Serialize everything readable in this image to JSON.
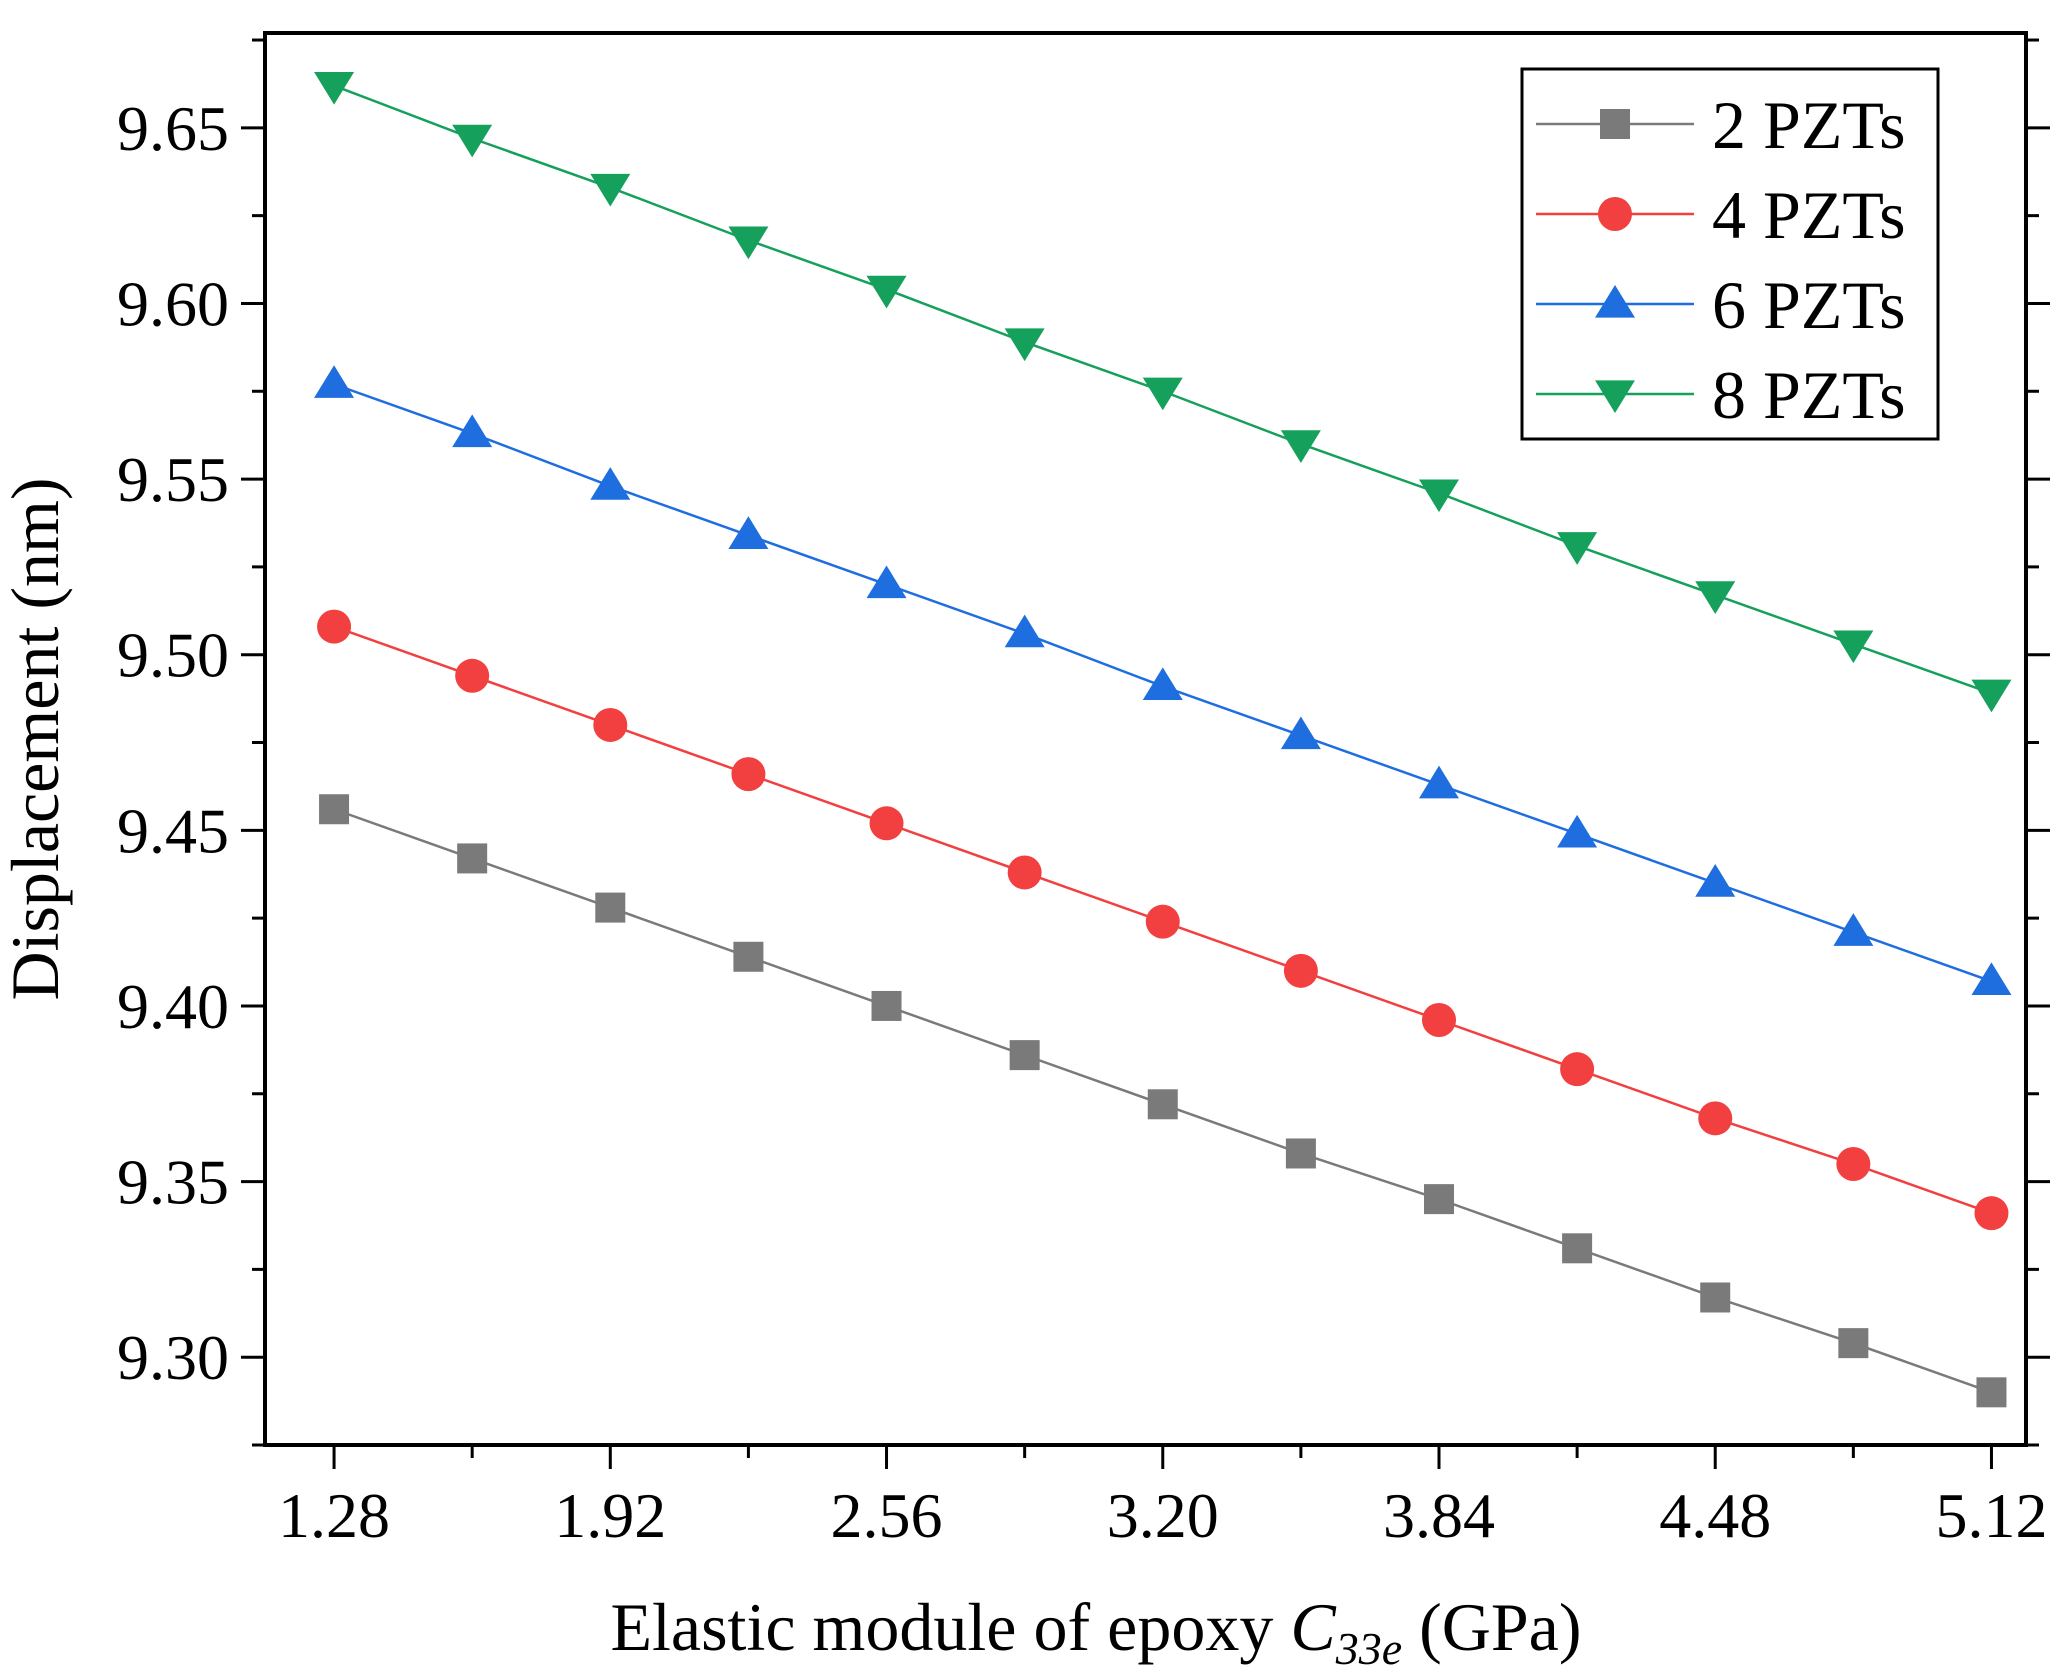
{
  "chart_data": {
    "type": "line",
    "title": "",
    "xlabel": {
      "prefix": "Elastic module of epoxy ",
      "symbol": "C",
      "subscript": "33e",
      "suffix": " (GPa)"
    },
    "ylabel": "Displacement (nm)",
    "xlim": [
      1.12,
      5.2
    ],
    "ylim": [
      9.275,
      9.677
    ],
    "x_ticks": [
      1.28,
      1.92,
      2.56,
      3.2,
      3.84,
      4.48,
      5.12
    ],
    "x_tick_labels": [
      "1.28",
      "1.92",
      "2.56",
      "3.20",
      "3.84",
      "4.48",
      "5.12"
    ],
    "y_ticks": [
      9.3,
      9.35,
      9.4,
      9.45,
      9.5,
      9.55,
      9.6,
      9.65
    ],
    "y_tick_labels": [
      "9.30",
      "9.35",
      "9.40",
      "9.45",
      "9.50",
      "9.55",
      "9.60",
      "9.65"
    ],
    "legend_position": "top-right",
    "x": [
      1.28,
      1.6,
      1.92,
      2.24,
      2.56,
      2.88,
      3.2,
      3.52,
      3.84,
      4.16,
      4.48,
      4.8,
      5.12
    ],
    "series": [
      {
        "name": "2 PZTs",
        "color": "#7a7a7a",
        "marker": "square",
        "values": [
          9.456,
          9.442,
          9.428,
          9.414,
          9.4,
          9.386,
          9.372,
          9.358,
          9.345,
          9.331,
          9.317,
          9.304,
          9.29
        ]
      },
      {
        "name": "4 PZTs",
        "color": "#f23f3f",
        "marker": "circle",
        "values": [
          9.508,
          9.494,
          9.48,
          9.466,
          9.452,
          9.438,
          9.424,
          9.41,
          9.396,
          9.382,
          9.368,
          9.355,
          9.341
        ]
      },
      {
        "name": "6 PZTs",
        "color": "#1f6ee0",
        "marker": "triangle-up",
        "values": [
          9.577,
          9.563,
          9.548,
          9.534,
          9.52,
          9.506,
          9.491,
          9.477,
          9.463,
          9.449,
          9.435,
          9.421,
          9.407
        ]
      },
      {
        "name": "8 PZTs",
        "color": "#15a05c",
        "marker": "triangle-down",
        "values": [
          9.662,
          9.647,
          9.633,
          9.618,
          9.604,
          9.589,
          9.575,
          9.56,
          9.546,
          9.531,
          9.517,
          9.503,
          9.489
        ]
      }
    ]
  }
}
